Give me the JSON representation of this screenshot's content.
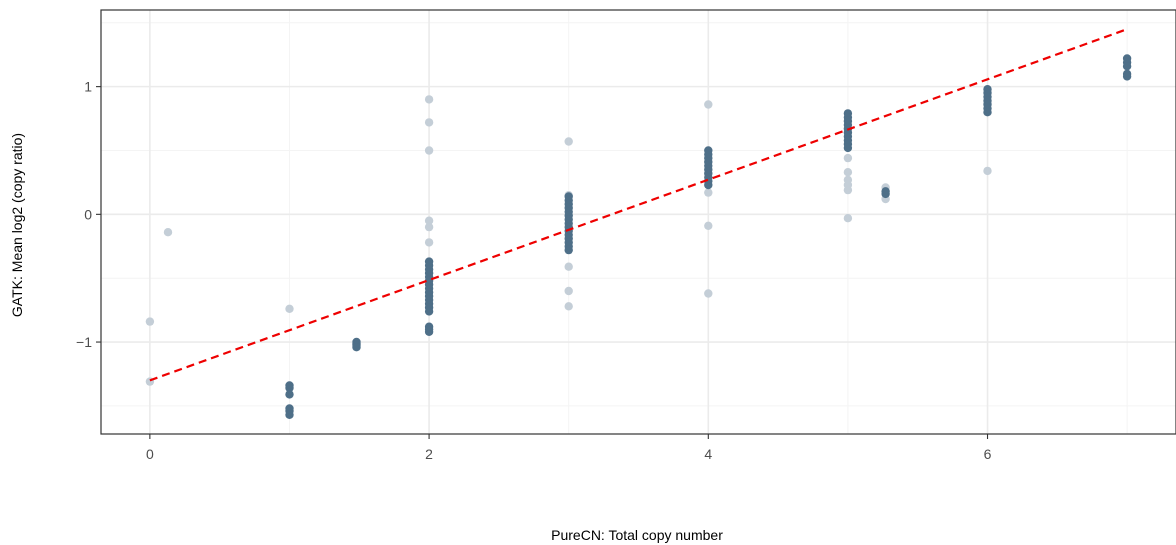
{
  "chart_data": {
    "type": "scatter",
    "title": "",
    "xlabel": "PureCN: Total copy number",
    "ylabel": "GATK: Mean log2 (copy ratio)",
    "xlim": [
      -0.35,
      7.35
    ],
    "ylim": [
      -1.72,
      1.6
    ],
    "x_ticks": [
      0,
      2,
      4,
      6
    ],
    "y_ticks": [
      -1,
      0,
      1
    ],
    "x_tick_labels": [
      "0",
      "2",
      "4",
      "6"
    ],
    "y_tick_labels": [
      "−1",
      "0",
      "1"
    ],
    "grid": true,
    "legend": "none",
    "colors": {
      "point_dense": "#4e6f88",
      "point_faint": "#c4ced7",
      "fit_line": "#ee0000",
      "grid_major": "#ebebeb",
      "grid_minor": "#f4f4f4",
      "frame": "#333333"
    },
    "series": [
      {
        "style": "faint",
        "points": [
          [
            0,
            -0.84
          ],
          [
            0,
            -1.31
          ],
          [
            0.13,
            -0.14
          ],
          [
            1,
            -0.74
          ],
          [
            2,
            0.9
          ],
          [
            2,
            0.72
          ],
          [
            2,
            0.5
          ],
          [
            2,
            -0.05
          ],
          [
            2,
            -0.1
          ],
          [
            2,
            -0.22
          ],
          [
            3,
            0.57
          ],
          [
            3,
            -0.41
          ],
          [
            3,
            -0.6
          ],
          [
            3,
            -0.72
          ],
          [
            3,
            0.15
          ],
          [
            4,
            0.86
          ],
          [
            4,
            -0.09
          ],
          [
            4,
            -0.62
          ],
          [
            4,
            0.17
          ],
          [
            5,
            0.44
          ],
          [
            5,
            0.33
          ],
          [
            5,
            0.27
          ],
          [
            5,
            0.23
          ],
          [
            5,
            0.19
          ],
          [
            5,
            -0.03
          ],
          [
            5.27,
            0.21
          ],
          [
            5.27,
            0.12
          ],
          [
            6,
            0.34
          ]
        ]
      },
      {
        "style": "dense",
        "points": [
          [
            1,
            -1.34
          ],
          [
            1,
            -1.36
          ],
          [
            1,
            -1.41
          ],
          [
            1,
            -1.52
          ],
          [
            1,
            -1.54
          ],
          [
            1,
            -1.57
          ],
          [
            1.48,
            -1.0
          ],
          [
            1.48,
            -1.01
          ],
          [
            1.48,
            -1.02
          ],
          [
            1.48,
            -1.03
          ],
          [
            1.48,
            -1.04
          ],
          [
            2,
            -0.37
          ],
          [
            2,
            -0.4
          ],
          [
            2,
            -0.43
          ],
          [
            2,
            -0.46
          ],
          [
            2,
            -0.49
          ],
          [
            2,
            -0.52
          ],
          [
            2,
            -0.55
          ],
          [
            2,
            -0.58
          ],
          [
            2,
            -0.61
          ],
          [
            2,
            -0.64
          ],
          [
            2,
            -0.67
          ],
          [
            2,
            -0.7
          ],
          [
            2,
            -0.73
          ],
          [
            2,
            -0.76
          ],
          [
            2,
            -0.88
          ],
          [
            2,
            -0.9
          ],
          [
            2,
            -0.92
          ],
          [
            3,
            0.14
          ],
          [
            3,
            0.11
          ],
          [
            3,
            0.08
          ],
          [
            3,
            0.05
          ],
          [
            3,
            0.02
          ],
          [
            3,
            -0.01
          ],
          [
            3,
            -0.04
          ],
          [
            3,
            -0.07
          ],
          [
            3,
            -0.1
          ],
          [
            3,
            -0.13
          ],
          [
            3,
            -0.16
          ],
          [
            3,
            -0.19
          ],
          [
            3,
            -0.22
          ],
          [
            3,
            -0.25
          ],
          [
            3,
            -0.28
          ],
          [
            4,
            0.5
          ],
          [
            4,
            0.47
          ],
          [
            4,
            0.44
          ],
          [
            4,
            0.41
          ],
          [
            4,
            0.38
          ],
          [
            4,
            0.35
          ],
          [
            4,
            0.32
          ],
          [
            4,
            0.29
          ],
          [
            4,
            0.26
          ],
          [
            4,
            0.23
          ],
          [
            5,
            0.79
          ],
          [
            5,
            0.76
          ],
          [
            5,
            0.73
          ],
          [
            5,
            0.7
          ],
          [
            5,
            0.67
          ],
          [
            5,
            0.64
          ],
          [
            5,
            0.61
          ],
          [
            5,
            0.58
          ],
          [
            5,
            0.55
          ],
          [
            5,
            0.52
          ],
          [
            5.27,
            0.16
          ],
          [
            5.27,
            0.18
          ],
          [
            6,
            0.98
          ],
          [
            6,
            0.95
          ],
          [
            6,
            0.92
          ],
          [
            6,
            0.89
          ],
          [
            6,
            0.86
          ],
          [
            6,
            0.83
          ],
          [
            6,
            0.8
          ],
          [
            7,
            1.22
          ],
          [
            7,
            1.19
          ],
          [
            7,
            1.16
          ],
          [
            7,
            1.1
          ],
          [
            7,
            1.08
          ]
        ]
      }
    ],
    "fit_line": {
      "style": "dashed",
      "points": [
        [
          0,
          -1.3
        ],
        [
          7,
          1.45
        ]
      ]
    }
  }
}
